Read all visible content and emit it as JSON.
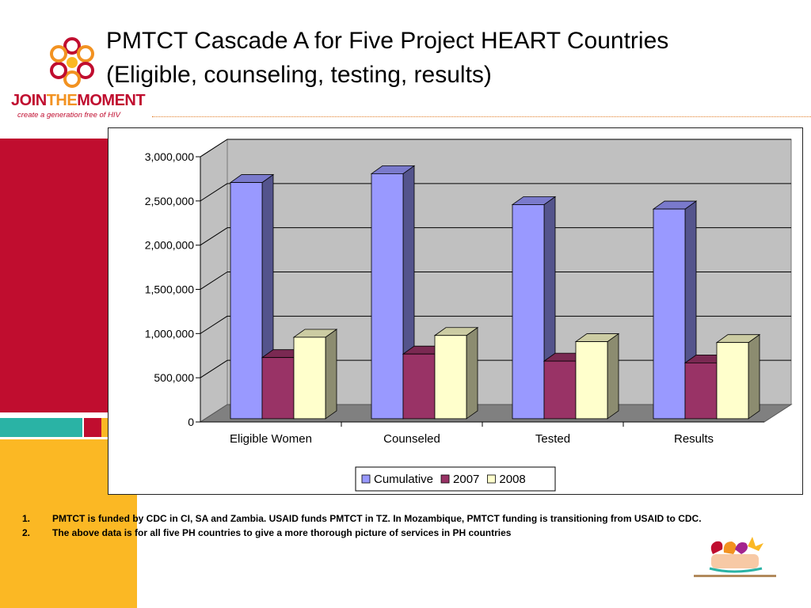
{
  "title": {
    "line1": "PMTCT Cascade A for Five Project HEART Countries",
    "line2": "(Eligible, counseling, testing, results)"
  },
  "logo": {
    "word1": "JOIN",
    "word2": "THE",
    "word3": "MOMENT",
    "tagline": "create a generation free of HIV"
  },
  "chart_data": {
    "type": "bar",
    "style": "3d-clustered-column",
    "categories": [
      "Eligible Women",
      "Counseled",
      "Tested",
      "Results"
    ],
    "series": [
      {
        "name": "Cumulative",
        "values": [
          2600000,
          2700000,
          2350000,
          2300000
        ],
        "color": "#9999ff"
      },
      {
        "name": "2007",
        "values": [
          620000,
          660000,
          580000,
          560000
        ],
        "color": "#993366"
      },
      {
        "name": "2008",
        "values": [
          850000,
          870000,
          800000,
          790000
        ],
        "color": "#ffffcc"
      }
    ],
    "ylim": [
      0,
      3000000
    ],
    "yticks": [
      "0",
      "500,000",
      "1,000,000",
      "1,500,000",
      "2,000,000",
      "2,500,000",
      "3,000,000"
    ],
    "grid": true,
    "legend": "bottom",
    "xlabel": "",
    "ylabel": ""
  },
  "notes": [
    {
      "num": "1.",
      "text": "PMTCT is funded by CDC in CI, SA and Zambia. USAID funds PMTCT in TZ. In Mozambique, PMTCT funding is transitioning from USAID to CDC."
    },
    {
      "num": "2.",
      "text": "The above data is for all five PH countries to give a more thorough picture of services in  PH countries"
    }
  ],
  "footer_logo": {
    "label": "Elizabeth Glaser Pediatric AIDS Foundation"
  }
}
